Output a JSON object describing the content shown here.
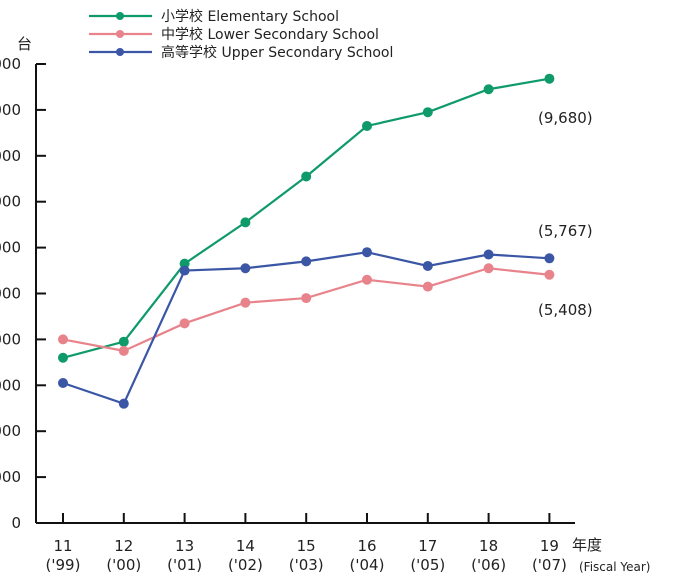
{
  "chart_data": {
    "type": "line",
    "ylabel": "台",
    "xlabel_unit": "年度",
    "xlabel_unit_en": "(Fiscal Year)",
    "ylim": [
      0,
      10000
    ],
    "yticks": [
      "0",
      "000",
      "000",
      "000",
      "000",
      "000",
      "000",
      "000",
      "000",
      "000",
      "000"
    ],
    "categories": [
      "11",
      "12",
      "13",
      "14",
      "15",
      "16",
      "17",
      "18",
      "19"
    ],
    "categories_sub": [
      "('99)",
      "('00)",
      "('01)",
      "('02)",
      "('03)",
      "('04)",
      "('05)",
      "('06)",
      "('07)"
    ],
    "series": [
      {
        "name": "小学校 Elementary School",
        "color": "#0f9a6a",
        "values": [
          3600,
          3950,
          5650,
          6550,
          7550,
          8650,
          8950,
          9450,
          9680
        ],
        "end_label": "(9,680)"
      },
      {
        "name": "中学校 Lower Secondary School",
        "color": "#e8838b",
        "values": [
          4000,
          3750,
          4350,
          4800,
          4900,
          5300,
          5150,
          5550,
          5408
        ],
        "end_label": "(5,408)"
      },
      {
        "name": "高等学校 Upper Secondary School",
        "color": "#3a56a5",
        "values": [
          3050,
          2600,
          5500,
          5550,
          5700,
          5900,
          5600,
          5850,
          5767
        ],
        "end_label": "(5,767)"
      }
    ],
    "grid": false,
    "legend_position": "top"
  }
}
